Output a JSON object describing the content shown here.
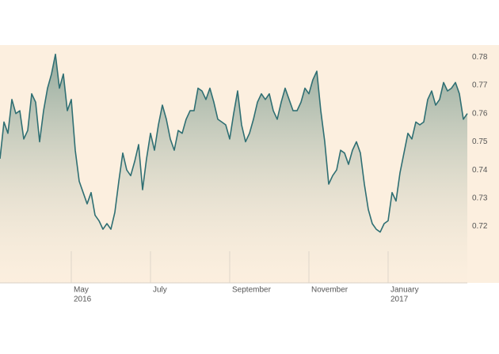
{
  "chart_data": {
    "type": "area",
    "values": [
      0.744,
      0.757,
      0.753,
      0.765,
      0.76,
      0.761,
      0.751,
      0.754,
      0.767,
      0.764,
      0.75,
      0.761,
      0.769,
      0.774,
      0.781,
      0.769,
      0.774,
      0.761,
      0.765,
      0.747,
      0.736,
      0.732,
      0.728,
      0.732,
      0.724,
      0.722,
      0.719,
      0.721,
      0.719,
      0.725,
      0.736,
      0.746,
      0.74,
      0.738,
      0.743,
      0.749,
      0.733,
      0.744,
      0.753,
      0.747,
      0.756,
      0.763,
      0.758,
      0.751,
      0.747,
      0.754,
      0.753,
      0.758,
      0.761,
      0.761,
      0.769,
      0.768,
      0.765,
      0.769,
      0.764,
      0.758,
      0.757,
      0.756,
      0.751,
      0.76,
      0.768,
      0.756,
      0.75,
      0.753,
      0.758,
      0.764,
      0.767,
      0.765,
      0.767,
      0.761,
      0.758,
      0.764,
      0.769,
      0.765,
      0.761,
      0.761,
      0.764,
      0.769,
      0.767,
      0.772,
      0.775,
      0.761,
      0.75,
      0.735,
      0.738,
      0.74,
      0.747,
      0.746,
      0.742,
      0.747,
      0.75,
      0.746,
      0.735,
      0.726,
      0.721,
      0.719,
      0.718,
      0.721,
      0.722,
      0.732,
      0.729,
      0.739,
      0.746,
      0.753,
      0.751,
      0.757,
      0.756,
      0.757,
      0.765,
      0.768,
      0.763,
      0.765,
      0.771,
      0.768,
      0.769,
      0.771,
      0.767,
      0.758,
      0.76
    ],
    "color": "#2f6f73",
    "xlim": [
      0,
      118
    ],
    "xticks": [
      {
        "value": 18,
        "label": "May"
      },
      {
        "value": 38,
        "label": "July"
      },
      {
        "value": 58,
        "label": "September"
      },
      {
        "value": 78,
        "label": "November"
      },
      {
        "value": 98,
        "label": "January"
      }
    ],
    "xtick_years": [
      {
        "value": 18,
        "label": "2016"
      },
      {
        "value": 98,
        "label": "2017"
      }
    ],
    "ylim": [
      0.7,
      0.784
    ],
    "yticks": [
      0.72,
      0.73,
      0.74,
      0.75,
      0.76,
      0.77,
      0.78
    ]
  }
}
